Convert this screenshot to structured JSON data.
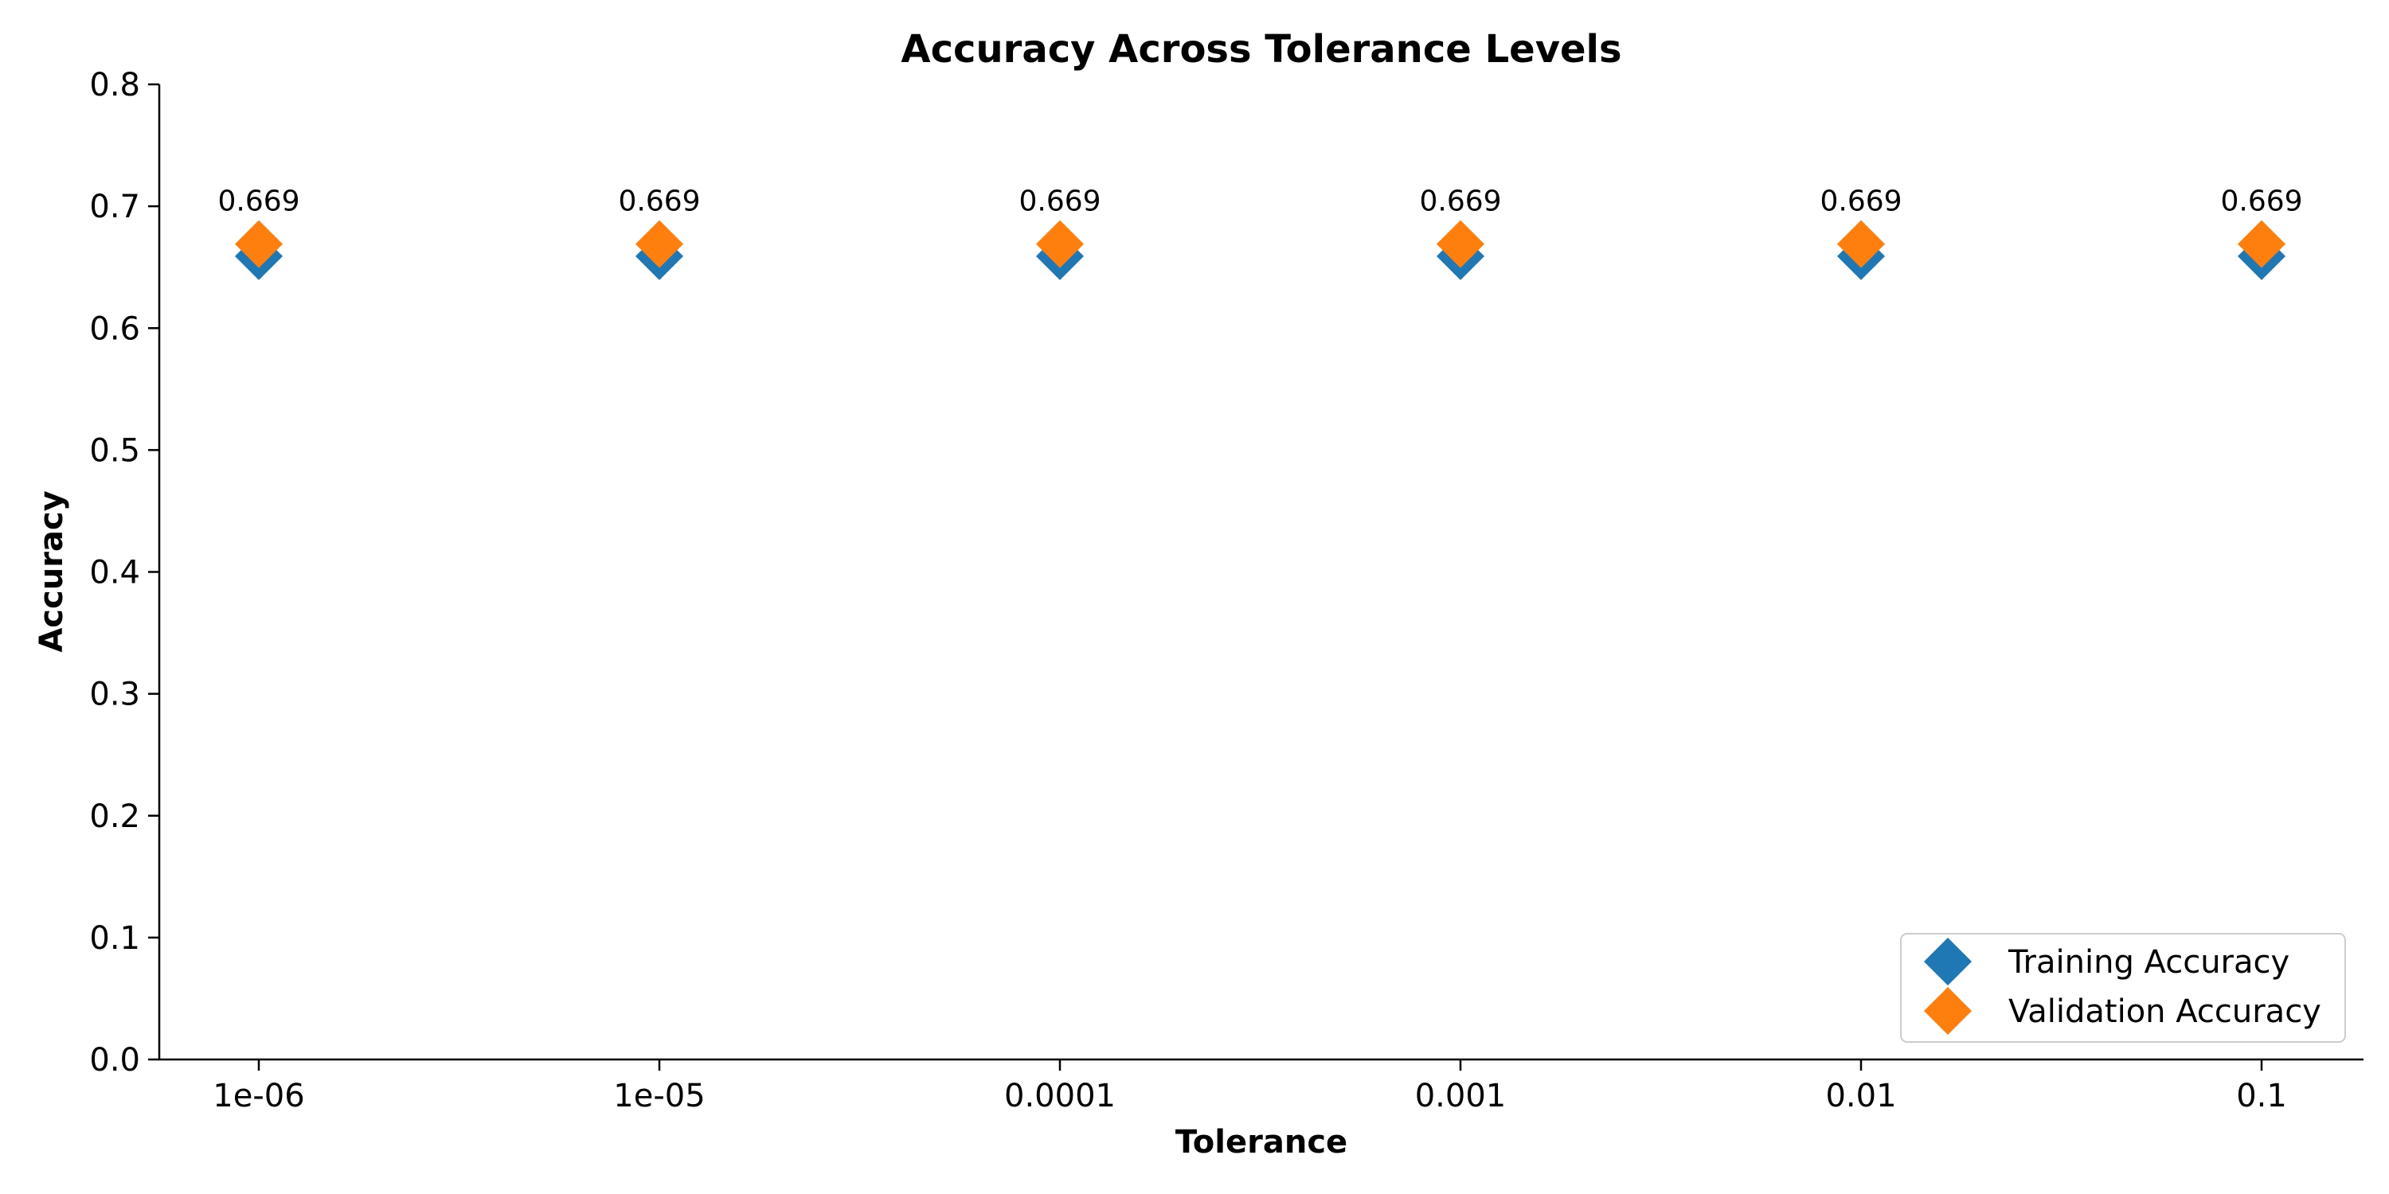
{
  "chart_data": {
    "type": "scatter",
    "title": "Accuracy Across Tolerance Levels",
    "xlabel": "Tolerance",
    "ylabel": "Accuracy",
    "categories": [
      "1e-06",
      "1e-05",
      "0.0001",
      "0.001",
      "0.01",
      "0.1"
    ],
    "x_scale": "log",
    "ylim": [
      0,
      0.8
    ],
    "yticks": [
      "0.0",
      "0.1",
      "0.2",
      "0.3",
      "0.4",
      "0.5",
      "0.6",
      "0.7",
      "0.8"
    ],
    "series": [
      {
        "name": "Training Accuracy",
        "values": [
          0.659,
          0.659,
          0.659,
          0.659,
          0.659,
          0.659
        ],
        "color": "#1f77b4",
        "marker": "diamond"
      },
      {
        "name": "Validation Accuracy",
        "values": [
          0.669,
          0.669,
          0.669,
          0.669,
          0.669,
          0.669
        ],
        "color": "#ff7f0e",
        "marker": "diamond"
      }
    ],
    "data_labels": [
      "0.669",
      "0.669",
      "0.669",
      "0.669",
      "0.669",
      "0.669"
    ],
    "grid": false,
    "legend_position": "lower-right"
  }
}
